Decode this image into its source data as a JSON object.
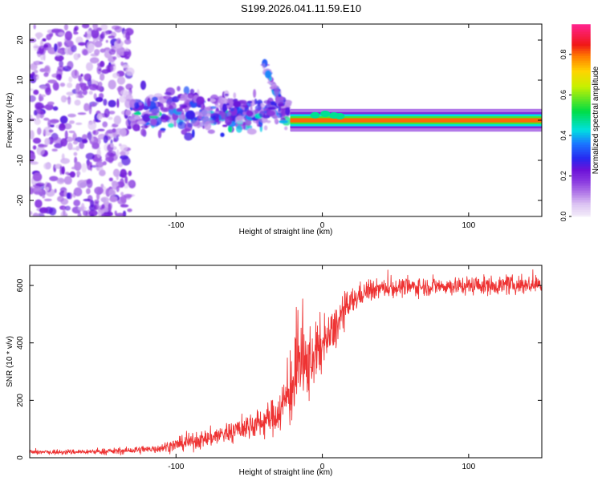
{
  "figure_title": "S199.2026.041.11.59.E10",
  "chart_data": [
    {
      "type": "heatmap",
      "title": "S199.2026.041.11.59.E10",
      "xlabel": "Height of straight line (km)",
      "ylabel": "Frequency (Hz)",
      "xlim": [
        -200,
        150
      ],
      "ylim": [
        -24,
        24
      ],
      "xticks": [
        -100,
        0,
        100
      ],
      "xtick_labels": [
        "-100",
        "0",
        "100"
      ],
      "yticks": [
        -20,
        -10,
        0,
        10,
        20
      ],
      "ytick_labels": [
        "-20",
        "-10",
        "0",
        "10",
        "20"
      ],
      "colorbar": {
        "label": "Normalized spectral amplitude",
        "range": [
          0.0,
          0.95
        ],
        "ticks": [
          0.0,
          0.2,
          0.4,
          0.6,
          0.8
        ],
        "tick_labels": [
          "0.0",
          "0.2",
          "0.4",
          "0.6",
          "0.8"
        ],
        "colormap": "rainbow"
      },
      "regions": [
        {
          "name": "scattered noise",
          "x_range": [
            -200,
            -130
          ],
          "freq_range": [
            -24,
            24
          ],
          "amplitude": 0.15
        },
        {
          "name": "emerging signal",
          "x_range": [
            -130,
            -22
          ],
          "freq_range": [
            -5,
            12
          ],
          "amplitude": 0.2
        },
        {
          "name": "short streak",
          "x_range": [
            -40,
            -28
          ],
          "freq_range": [
            4,
            14
          ],
          "amplitude": 0.25
        },
        {
          "name": "continuous band",
          "x_range": [
            -22,
            150
          ],
          "center_freq_hz": 0,
          "halfwidth_hz": 1.5,
          "amplitude": 0.9
        }
      ]
    },
    {
      "type": "line",
      "title": "",
      "xlabel": "Height of straight line (km)",
      "ylabel": "SNR (10 * v/v)",
      "xlim": [
        -200,
        150
      ],
      "ylim": [
        0,
        670
      ],
      "xticks": [
        -100,
        0,
        100
      ],
      "xtick_labels": [
        "-100",
        "0",
        "100"
      ],
      "yticks": [
        0,
        200,
        400,
        600
      ],
      "ytick_labels": [
        "0",
        "200",
        "400",
        "600"
      ],
      "series": [
        {
          "name": "SNR",
          "color": "#ee3333",
          "x": [
            -200,
            -180,
            -160,
            -140,
            -120,
            -110,
            -100,
            -90,
            -80,
            -70,
            -60,
            -50,
            -40,
            -35,
            -30,
            -25,
            -20,
            -18,
            -15,
            -12,
            -10,
            -5,
            0,
            5,
            10,
            15,
            20,
            25,
            30,
            40,
            50,
            60,
            70,
            80,
            90,
            100,
            110,
            120,
            130,
            140,
            150
          ],
          "values": [
            20,
            20,
            21,
            23,
            28,
            35,
            45,
            55,
            65,
            80,
            95,
            110,
            125,
            140,
            160,
            200,
            260,
            300,
            340,
            300,
            330,
            360,
            390,
            420,
            460,
            510,
            540,
            565,
            580,
            590,
            592,
            595,
            596,
            598,
            598,
            600,
            600,
            600,
            601,
            602,
            603
          ],
          "noise_amplitude": [
            10,
            10,
            10,
            12,
            15,
            20,
            25,
            30,
            35,
            40,
            45,
            50,
            60,
            65,
            80,
            110,
            160,
            200,
            200,
            180,
            160,
            120,
            100,
            90,
            80,
            70,
            55,
            45,
            40,
            35,
            35,
            35,
            35,
            35,
            35,
            35,
            35,
            35,
            35,
            35,
            35
          ]
        }
      ]
    }
  ]
}
